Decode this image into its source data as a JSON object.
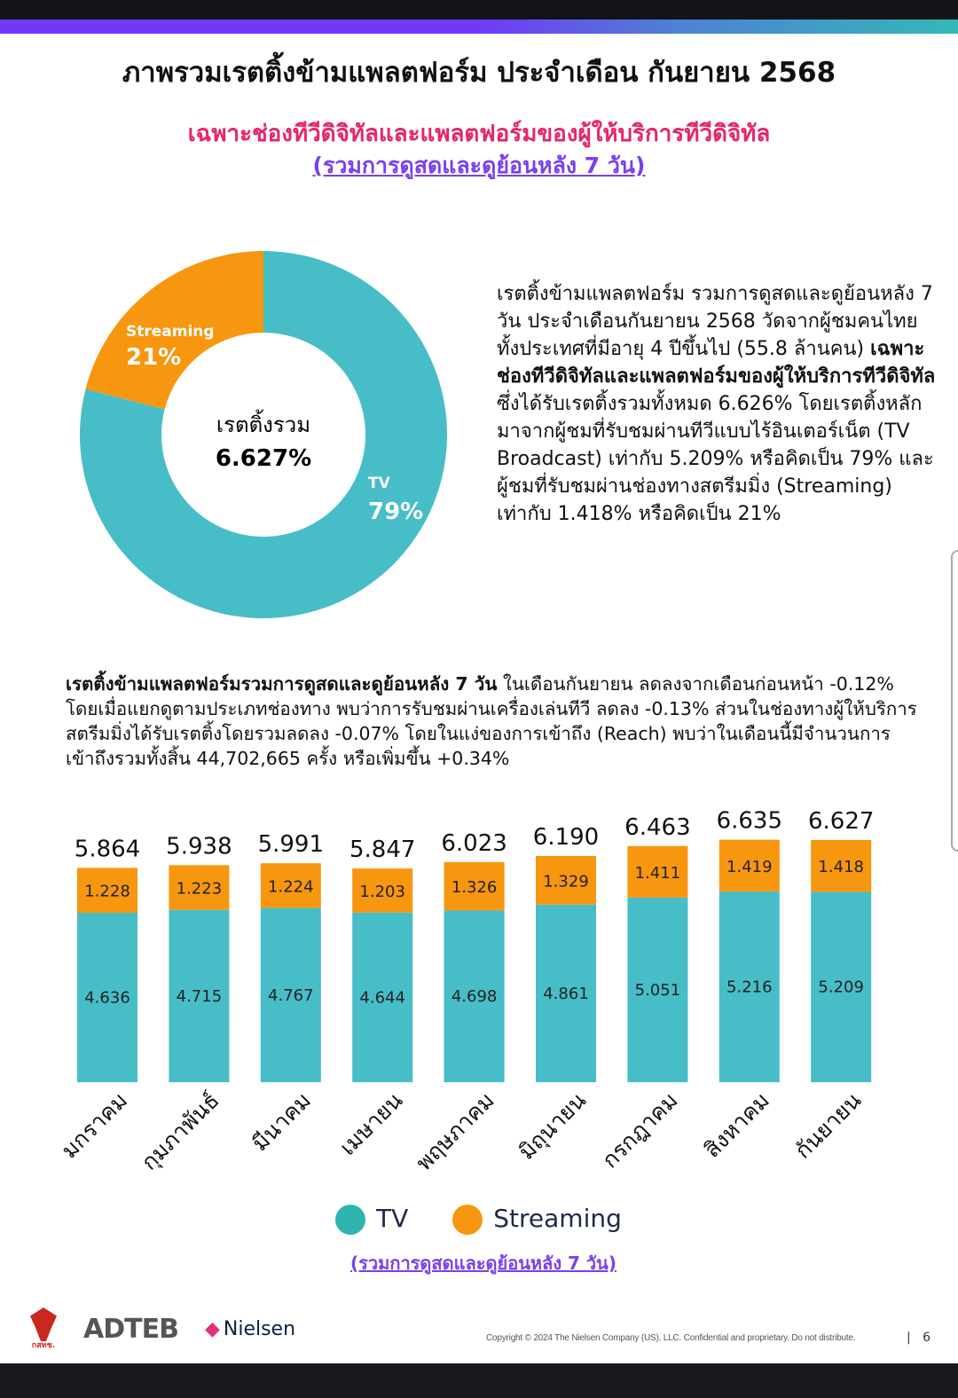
{
  "header": {
    "title": "ภาพรวมเรตติ้งข้ามแพลตฟอร์ม ประจำเดือน กันยายน 2568",
    "subtitle": "เฉพาะช่องทีวีดิจิทัลและแพลตฟอร์มของผู้ให้บริการทีวีดิจิทัล",
    "subtitle2": "(รวมการดูสดและดูย้อนหลัง 7 วัน)"
  },
  "donut": {
    "center_label": "เรตติ้งรวม",
    "center_value": "6.627%",
    "slices": [
      {
        "name": "TV",
        "label": "79%",
        "value": 79,
        "color": "#47bdc8"
      },
      {
        "name": "Streaming",
        "label": "21%",
        "value": 21,
        "color": "#f7960f"
      }
    ]
  },
  "description": {
    "normal1": "เรตติ้งข้ามแพลตฟอร์ม รวมการดูสดและดูย้อนหลัง 7 วัน ประจำเดือนกันยายน 2568 วัดจากผู้ชมคนไทยทั้งประเทศที่มีอายุ 4 ปีขึ้นไป (55.8 ล้านคน) ",
    "bold": "เฉพาะช่องทีวีดิจิทัลและแพลตฟอร์มของผู้ให้บริการทีวีดิจิทัล",
    "normal2": " ซึ่งได้รับเรตติ้งรวมทั้งหมด 6.626% โดยเรตติ้งหลักมาจากผู้ชมที่รับชมผ่านทีวีแบบไร้อินเตอร์เน็ต (TV Broadcast) เท่ากับ 5.209% หรือคิดเป็น 79% และผู้ชมที่รับชมผ่านช่องทางสตรีมมิ่ง (Streaming) เท่ากับ 1.418% หรือคิดเป็น 21%"
  },
  "paragraph": {
    "bold": "เรตติ้งข้ามแพลตฟอร์มรวมการดูสดและดูย้อนหลัง 7 วัน",
    "normal": " ในเดือนกันยายน ลดลงจากเดือนก่อนหน้า -0.12% โดยเมื่อแยกดูตามประเภทช่องทาง พบว่าการรับชมผ่านเครื่องเล่นทีวี ลดลง -0.13% ส่วนในช่องทางผู้ให้บริการสตรีมมิ่งได้รับเรตติ้งโดยรวมลดลง -0.07% โดยในแง่ของการเข้าถึง (Reach) พบว่าในเดือนนี้มีจำนวนการเข้าถึงรวมทั้งสิ้น 44,702,665 ครั้ง หรือเพิ่มขึ้น +0.34%"
  },
  "chart_data": {
    "type": "bar",
    "stacked": true,
    "categories": [
      "มกราคม",
      "กุมภาพันธ์",
      "มีนาคม",
      "เมษายน",
      "พฤษภาคม",
      "มิถุนายน",
      "กรกฎาคม",
      "สิงหาคม",
      "กันยายน"
    ],
    "series": [
      {
        "name": "TV",
        "color": "#47bdc8",
        "values": [
          4.636,
          4.715,
          4.767,
          4.644,
          4.698,
          4.861,
          5.051,
          5.216,
          5.209
        ]
      },
      {
        "name": "Streaming",
        "color": "#f7960f",
        "values": [
          1.228,
          1.223,
          1.224,
          1.203,
          1.326,
          1.329,
          1.411,
          1.419,
          1.418
        ]
      }
    ],
    "totals": [
      "5.864",
      "5.938",
      "5.991",
      "5.847",
      "6.023",
      "6.190",
      "6.463",
      "6.635",
      "6.627"
    ],
    "labels_tv": [
      "4.636",
      "4.715",
      "4.767",
      "4.644",
      "4.698",
      "4.861",
      "5.051",
      "5.216",
      "5.209"
    ],
    "labels_st": [
      "1.228",
      "1.223",
      "1.224",
      "1.203",
      "1.326",
      "1.329",
      "1.411",
      "1.419",
      "1.418"
    ],
    "legend": [
      "TV",
      "Streaming"
    ],
    "note": "(รวมการดูสดและดูย้อนหลัง 7 วัน)"
  },
  "footer": {
    "logo1": "กสทช.",
    "logo2": "ADTEB",
    "logo3": "Nielsen",
    "copyright": "Copyright © 2024 The Nielsen Company (US), LLC. Confidential and proprietary. Do not distribute.",
    "page": "6"
  }
}
